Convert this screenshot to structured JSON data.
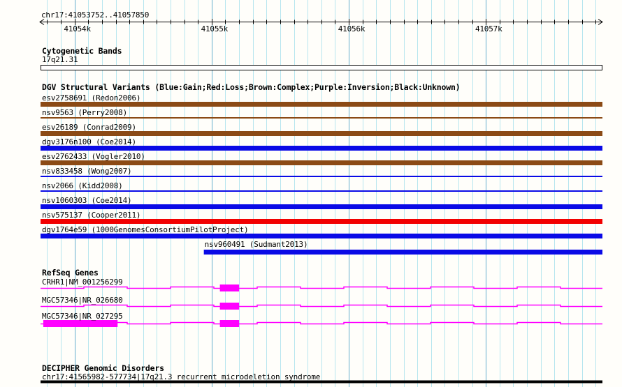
{
  "palette": {
    "grid_minor": "#b7e6ef",
    "grid_major": "#64aecd",
    "gain": "#0a0ae6",
    "loss": "#f20000",
    "complex": "#8b4a15",
    "unknown": "#000000",
    "gene": "#ff00ff",
    "band_fill": "#ffffff",
    "band_border": "#000000",
    "ruler": "#000000",
    "text": "#000000"
  },
  "axis": {
    "region_label": "chr17:41053752..41057850",
    "start": 41053752,
    "end": 41057850,
    "minor_step": 100,
    "major_ticks": [
      {
        "bp": 41054000,
        "label": "41054k"
      },
      {
        "bp": 41055000,
        "label": "41055k"
      },
      {
        "bp": 41056000,
        "label": "41056k"
      },
      {
        "bp": 41057000,
        "label": "41057k"
      }
    ]
  },
  "cytogenetic": {
    "title": "Cytogenetic Bands",
    "band_label": "17q21.31"
  },
  "dgv": {
    "title": "DGV Structural Variants (Blue:Gain;Red:Loss;Brown:Complex;Purple:Inversion;Black:Unknown)",
    "variants": [
      {
        "label": "esv2758691 (Redon2006)",
        "type": "complex",
        "style": "thick"
      },
      {
        "label": "nsv9563 (Perry2008)",
        "type": "complex",
        "style": "thin"
      },
      {
        "label": "esv26189 (Conrad2009)",
        "type": "complex",
        "style": "thick"
      },
      {
        "label": "dgv3176n100 (Coe2014)",
        "type": "gain",
        "style": "thick"
      },
      {
        "label": "esv2762433 (Vogler2010)",
        "type": "complex",
        "style": "thick"
      },
      {
        "label": "nsv833458 (Wong2007)",
        "type": "gain",
        "style": "thin"
      },
      {
        "label": "nsv2066 (Kidd2008)",
        "type": "gain",
        "style": "thin"
      },
      {
        "label": "nsv1060303 (Coe2014)",
        "type": "gain",
        "style": "thick"
      },
      {
        "label": "nsv575137 (Cooper2011)",
        "type": "loss",
        "style": "thick"
      },
      {
        "label": "dgv1764e59 (1000GenomesConsortiumPilotProject)",
        "type": "gain",
        "style": "thick"
      },
      {
        "label": "nsv960491 (Sudmant2013)",
        "type": "gain",
        "style": "thick",
        "start": 41054943
      }
    ]
  },
  "refseq": {
    "title": "RefSeq Genes",
    "genes": [
      {
        "label": "CRHR1|NM_001256299",
        "exons": [
          [
            41055060,
            41055200
          ]
        ]
      },
      {
        "label": "MGC57346|NR_026680",
        "exons": [
          [
            41055060,
            41055200
          ]
        ]
      },
      {
        "label": "MGC57346|NR_027295",
        "exons": [
          [
            41053772,
            41054314
          ],
          [
            41055060,
            41055200
          ]
        ]
      }
    ]
  },
  "decipher": {
    "title": "DECIPHER Genomic Disorders",
    "entries": [
      {
        "label": "chr17:41565982-577734|17q21.3 recurrent microdeletion syndrome",
        "type": "unknown"
      }
    ]
  }
}
